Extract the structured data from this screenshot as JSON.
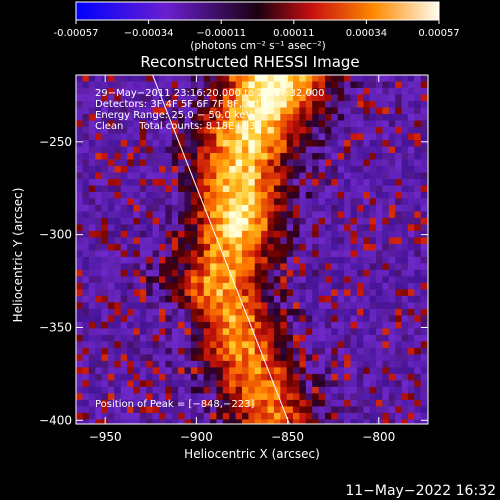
{
  "chart_data": {
    "type": "heatmap",
    "title": "Reconstructed RHESSI Image",
    "xlabel": "Heliocentric X (arcsec)",
    "ylabel": "Heliocentric Y (arcsec)",
    "xlim": [
      -966,
      -773
    ],
    "ylim": [
      -402,
      -214
    ],
    "x_ticks": [
      -950,
      -900,
      -850,
      -800
    ],
    "y_ticks": [
      -400,
      -350,
      -300,
      -250
    ],
    "x_tick_labels": [
      "−950",
      "−900",
      "−850",
      "−800"
    ],
    "y_tick_labels": [
      "−400",
      "−350",
      "−300",
      "−250"
    ],
    "colorbar": {
      "min": -0.00057,
      "max": 0.00057,
      "ticks": [
        "-0.00057",
        "−0.00034",
        "−0.00011",
        "0.00011",
        "0.00034",
        "0.00057"
      ],
      "unit_label": "(photons cm⁻² s⁻¹ asec⁻²)"
    },
    "annotations": [
      "29−May−2011 23:16:20.000 to 23:17:32.000",
      "Detectors: 3F 4F 5F 6F 7F 8F, Att 0",
      "Energy Range: 25.0 − 50.0 keV",
      "Clean     Total counts: 8.18E+03"
    ],
    "peak_label": "Position of Peak = [−848,−223]",
    "peak_position": [
      -848,
      -223
    ],
    "limb_line": {
      "x": [
        -924,
        -849
      ],
      "y": [
        -214,
        -402
      ]
    },
    "emission_ridge": [
      {
        "y": -220,
        "x": -860,
        "w": 28,
        "a": 1.0
      },
      {
        "y": -240,
        "x": -870,
        "w": 30,
        "a": 0.85
      },
      {
        "y": -260,
        "x": -878,
        "w": 26,
        "a": 0.8
      },
      {
        "y": -285,
        "x": -878,
        "w": 24,
        "a": 0.9
      },
      {
        "y": -305,
        "x": -882,
        "w": 24,
        "a": 0.75
      },
      {
        "y": -325,
        "x": -890,
        "w": 26,
        "a": 0.7
      },
      {
        "y": -345,
        "x": -880,
        "w": 22,
        "a": 0.7
      },
      {
        "y": -370,
        "x": -872,
        "w": 26,
        "a": 0.65
      },
      {
        "y": -395,
        "x": -860,
        "w": 24,
        "a": 0.6
      }
    ],
    "grid": false
  },
  "footer": {
    "timestamp": "11−May−2022 16:32"
  },
  "colors": {
    "background": "#000000",
    "foreground": "#ffffff"
  }
}
